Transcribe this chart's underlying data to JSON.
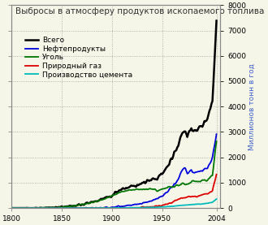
{
  "title": "Выбросы в атмосферу продуктов ископаемого топлива",
  "ylabel": "Миллионов тонн в год",
  "xlim": [
    1800,
    2008
  ],
  "ylim": [
    0,
    8000
  ],
  "yticks": [
    0,
    1000,
    2000,
    3000,
    4000,
    5000,
    6000,
    7000,
    8000
  ],
  "xticks": [
    1800,
    1850,
    1900,
    1950,
    2004
  ],
  "legend": [
    {
      "label": "Всего",
      "color": "#000000",
      "lw": 1.8
    },
    {
      "label": "Нефтепродукты",
      "color": "#0000dd",
      "lw": 1.3
    },
    {
      "label": "Уголь",
      "color": "#007700",
      "lw": 1.3
    },
    {
      "label": "Природный газ",
      "color": "#dd0000",
      "lw": 1.3
    },
    {
      "label": "Производство цемента",
      "color": "#00bbbb",
      "lw": 1.3
    }
  ],
  "bg_color": "#f5f5e8",
  "grid_color": "#999999",
  "title_fontsize": 7.5,
  "legend_fontsize": 6.5,
  "tick_fontsize": 6.5,
  "ylabel_fontsize": 6.5,
  "ylabel_color": "#4466cc"
}
